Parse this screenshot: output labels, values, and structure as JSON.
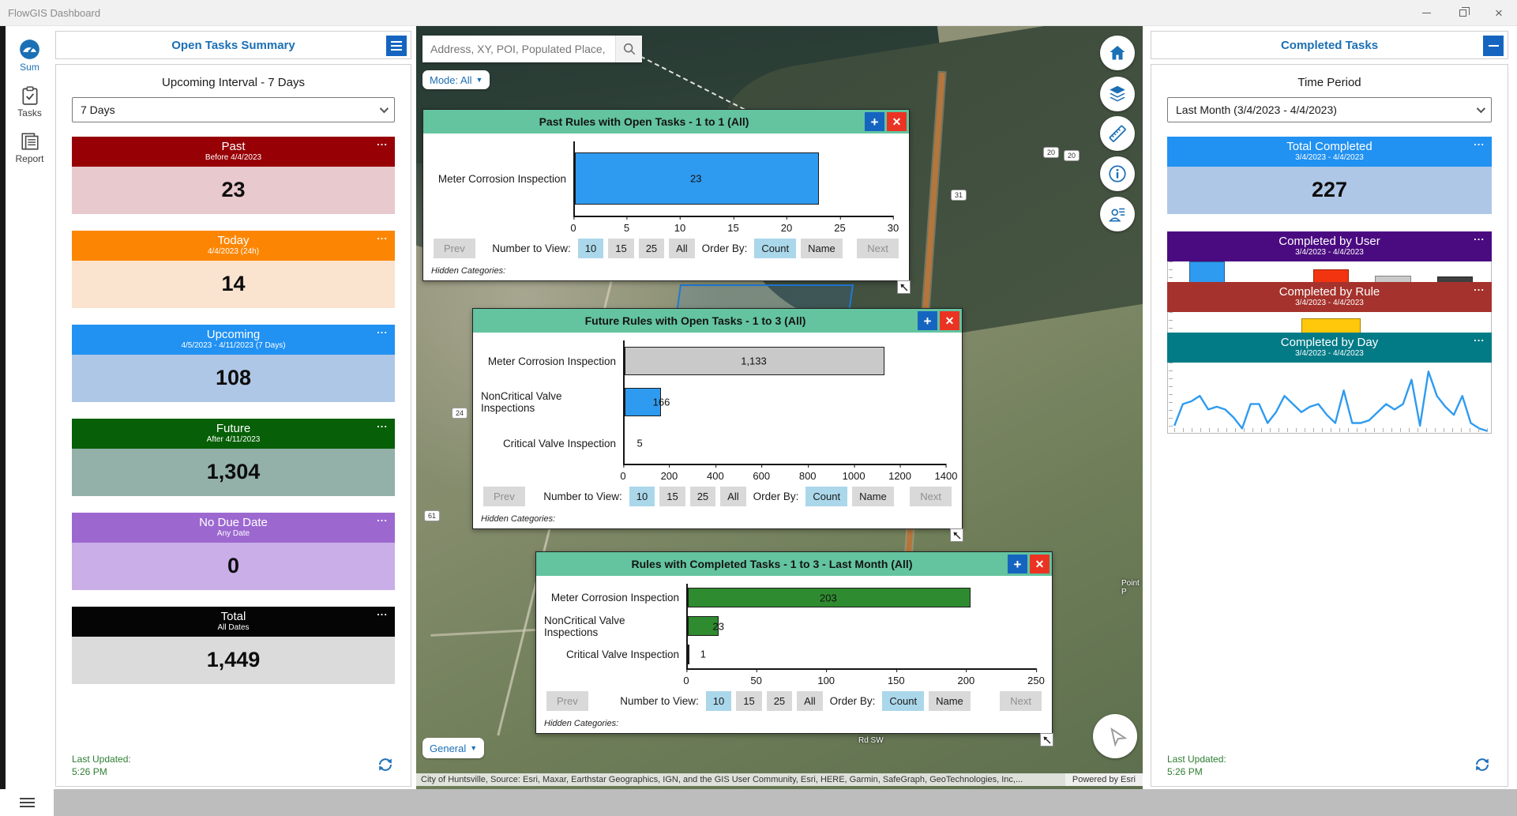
{
  "window": {
    "title": "FlowGIS Dashboard"
  },
  "icons": {
    "add_panel": "+",
    "close_panel": "✕",
    "menu_dots": "...",
    "caret_down": "▼"
  },
  "nav_rail": {
    "items": [
      {
        "label": "Sum"
      },
      {
        "label": "Tasks"
      },
      {
        "label": "Report"
      }
    ]
  },
  "open_tasks": {
    "title": "Open Tasks Summary",
    "interval_label": "Upcoming Interval - 7 Days",
    "interval_value": "7 Days",
    "cards": [
      {
        "name": "Past",
        "subtitle": "Before 4/4/2023",
        "value": "23",
        "header_color": "#970005",
        "body_color": "#E8C9CE"
      },
      {
        "name": "Today",
        "subtitle": "4/4/2023 (24h)",
        "value": "14",
        "header_color": "#FC8604",
        "body_color": "#FAE3CF"
      },
      {
        "name": "Upcoming",
        "subtitle": "4/5/2023 - 4/11/2023 (7 Days)",
        "value": "108",
        "header_color": "#2191F2",
        "body_color": "#AFC7E6"
      },
      {
        "name": "Future",
        "subtitle": "After 4/11/2023",
        "value": "1,304",
        "header_color": "#075F07",
        "body_color": "#93B1A9"
      },
      {
        "name": "No Due Date",
        "subtitle": "Any Date",
        "value": "0",
        "header_color": "#9C68D0",
        "body_color": "#C9AEE8"
      },
      {
        "name": "Total",
        "subtitle": "All Dates",
        "value": "1,449",
        "header_color": "#050505",
        "body_color": "#DBDBDB"
      }
    ],
    "last_updated_label": "Last Updated:",
    "last_updated_time": "5:26 PM"
  },
  "map": {
    "search_placeholder": "Address, XY, POI, Populated Place, or Postal",
    "mode_label": "Mode: All",
    "general_label": "General",
    "attribution": "City of Huntsville, Source: Esri, Maxar, Earthstar Geographics, IGN, and the GIS User Community, Esri, HERE, Garmin, SafeGraph, GeoTechnologies, Inc,...",
    "powered_by": "Powered by Esri",
    "shields": [
      "20",
      "20",
      "31",
      "24",
      "61"
    ],
    "labels": [
      "Rd SW",
      "Point P"
    ]
  },
  "panel_controls": {
    "prev": "Prev",
    "number_label": "Number to View:",
    "number_options": [
      "10",
      "15",
      "25",
      "All"
    ],
    "number_selected": "10",
    "order_label": "Order By:",
    "order_options": [
      "Count",
      "Name"
    ],
    "order_selected": "Count",
    "next": "Next",
    "hidden_label": "Hidden Categories:"
  },
  "chart_data": [
    {
      "type": "bar",
      "orientation": "horizontal",
      "title": "Past Rules with Open Tasks - 1 to 1  (All)",
      "categories": [
        "Meter Corrosion Inspection"
      ],
      "values": [
        23
      ],
      "labels": [
        "23"
      ],
      "bar_colors": [
        "#2E9BF0"
      ],
      "xlim": [
        0,
        30
      ],
      "ticks": [
        "0",
        "5",
        "10",
        "15",
        "20",
        "25",
        "30"
      ]
    },
    {
      "type": "bar",
      "orientation": "horizontal",
      "title": "Future Rules with Open Tasks - 1 to 3  (All)",
      "categories": [
        "Meter Corrosion Inspection",
        "NonCritical Valve Inspections",
        "Critical Valve Inspection"
      ],
      "values": [
        1133,
        166,
        5
      ],
      "labels": [
        "1,133",
        "166",
        "5"
      ],
      "bar_colors": [
        "#C9C9C9",
        "#2E9BF0",
        "#C9C9C9"
      ],
      "xlim": [
        0,
        1400
      ],
      "ticks": [
        "0",
        "200",
        "400",
        "600",
        "800",
        "1000",
        "1200",
        "1400"
      ]
    },
    {
      "type": "bar",
      "orientation": "horizontal",
      "title": "Rules with Completed Tasks - 1 to 3 - Last Month (All)",
      "categories": [
        "Meter Corrosion Inspection",
        "NonCritical Valve Inspections",
        "Critical Valve Inspection"
      ],
      "values": [
        203,
        23,
        1
      ],
      "labels": [
        "203",
        "23",
        "1"
      ],
      "bar_colors": [
        "#2E8B2F",
        "#2E8B2F",
        "#2E8B2F"
      ],
      "xlim": [
        0,
        250
      ],
      "ticks": [
        "0",
        "50",
        "100",
        "150",
        "200",
        "250"
      ]
    },
    {
      "type": "bar",
      "orientation": "vertical",
      "title": "Completed by User",
      "subtitle": "3/4/2023 - 4/4/2023",
      "values": [
        100,
        2,
        74,
        56,
        53
      ],
      "ylim": [
        0,
        100
      ],
      "bar_colors": [
        "#2E9BF0",
        "#D8B012",
        "#F23510",
        "#C9C9C9",
        "#3F3F3F"
      ]
    },
    {
      "type": "bar",
      "orientation": "vertical",
      "title": "Completed by Rule",
      "subtitle": "3/4/2023 - 4/4/2023",
      "values": [
        0,
        80,
        9
      ],
      "ylim": [
        0,
        100
      ],
      "bar_colors": [
        "#C9C9C9",
        "#FFC80A",
        "#F23510"
      ]
    },
    {
      "type": "line",
      "title": "Completed by Day",
      "subtitle": "3/4/2023 - 4/4/2023",
      "values": [
        2,
        10,
        11,
        13,
        8,
        9,
        8,
        5,
        1,
        10,
        10,
        3,
        7,
        13,
        10,
        7,
        9,
        10,
        6,
        3,
        15,
        3,
        3,
        4,
        7,
        10,
        8,
        10,
        19,
        2,
        22,
        13,
        9,
        6,
        13,
        3,
        1,
        0
      ],
      "ylim": [
        0,
        24
      ],
      "line_color": "#2E9BF0"
    }
  ],
  "completed_tasks": {
    "title": "Completed Tasks",
    "period_label": "Time Period",
    "period_value": "Last Month (3/4/2023 - 4/4/2023)",
    "total_card": {
      "name": "Total Completed",
      "subtitle": "3/4/2023 - 4/4/2023",
      "value": "227",
      "header_color": "#2191F2",
      "body_color": "#AFC7E6"
    },
    "chart_cards": [
      {
        "name": "Completed by User",
        "subtitle": "3/4/2023 - 4/4/2023",
        "header_color": "#4A0B80"
      },
      {
        "name": "Completed by Rule",
        "subtitle": "3/4/2023 - 4/4/2023",
        "header_color": "#A5322C"
      },
      {
        "name": "Completed by Day",
        "subtitle": "3/4/2023 - 4/4/2023",
        "header_color": "#037B87"
      }
    ],
    "last_updated_label": "Last Updated:",
    "last_updated_time": "5:26 PM"
  }
}
